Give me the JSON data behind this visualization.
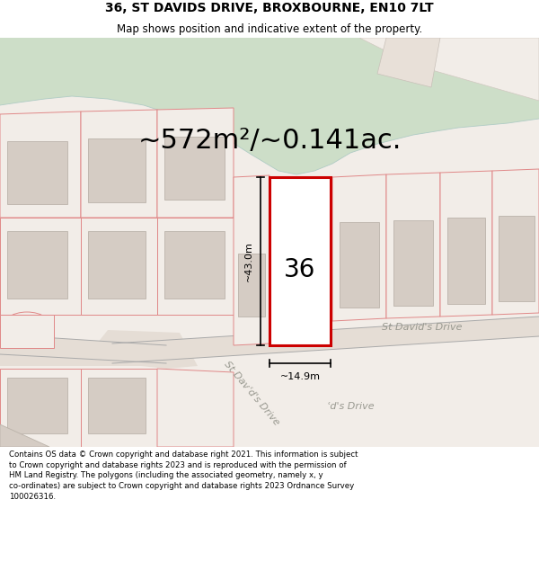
{
  "title_line1": "36, ST DAVIDS DRIVE, BROXBOURNE, EN10 7LT",
  "title_line2": "Map shows position and indicative extent of the property.",
  "area_text": "~572m²/~0.141ac.",
  "number_label": "36",
  "dim_vertical": "~43.0m",
  "dim_horizontal": "~14.9m",
  "street_label_right": "St David's Drive",
  "street_label_diag": "St Davʿd's Drive",
  "footer_text": "Contains OS data © Crown copyright and database right 2021. This information is subject to Crown copyright and database rights 2023 and is reproduced with the permission of HM Land Registry. The polygons (including the associated geometry, namely x, y co-ordinates) are subject to Crown copyright and database rights 2023 Ordnance Survey 100026316.",
  "map_bg": "#f2ede8",
  "water_color": "#cddec8",
  "water_outline": "#a8c8c0",
  "road_color": "#e5ddd5",
  "plot_outline_color": "#cc0000",
  "plot_fill": "#ffffff",
  "parcel_outline_color": "#e08888",
  "building_fill": "#d5ccc4",
  "building_outline": "#bbb3aa",
  "road_line_color": "#aaaaaa",
  "dim_line_color": "#000000",
  "title_fontsize": 10,
  "subtitle_fontsize": 8.5,
  "area_fontsize": 22,
  "number_fontsize": 20,
  "dim_fontsize": 8,
  "street_fontsize": 8,
  "footer_fontsize": 6.2
}
